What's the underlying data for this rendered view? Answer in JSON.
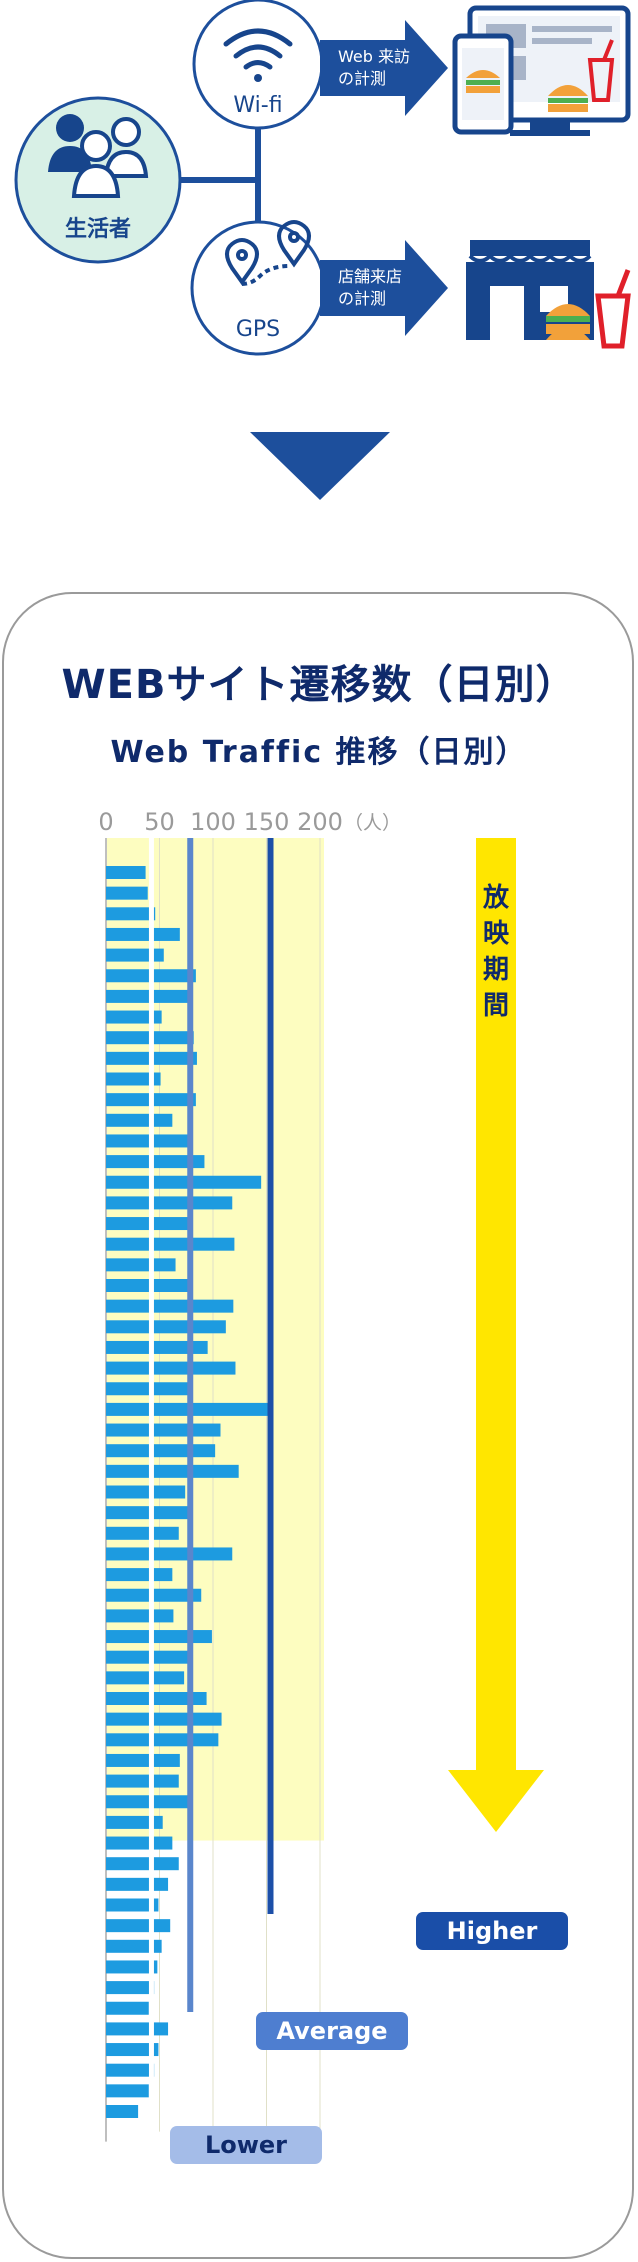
{
  "flow": {
    "person_label": "生活者",
    "wifi_label": "Wi-fi",
    "gps_label": "GPS",
    "web_arrow_line1": "Web 来訪",
    "web_arrow_line2": "の計測",
    "store_arrow_line1": "店舗来店",
    "store_arrow_line2": "の計測"
  },
  "chart_data": {
    "type": "bar",
    "orientation": "horizontal",
    "title": "WEBサイト遷移数（日別）",
    "subtitle": "Web Traffic 推移（日別）",
    "xlim": [
      0,
      200
    ],
    "x_ticks": [
      "0",
      "50",
      "100",
      "150",
      "200"
    ],
    "x_unit": "（人）",
    "values": [
      37,
      39,
      46,
      69,
      54,
      84,
      79,
      52,
      82,
      85,
      51,
      84,
      62,
      77,
      92,
      145,
      118,
      81,
      120,
      65,
      81,
      119,
      112,
      95,
      121,
      77,
      152,
      107,
      102,
      124,
      74,
      77,
      68,
      118,
      62,
      89,
      63,
      99,
      81,
      73,
      94,
      108,
      105,
      69,
      68,
      79,
      53,
      62,
      68,
      58,
      49,
      60,
      52,
      48,
      45,
      40,
      58,
      49,
      45,
      40,
      30
    ],
    "lower_values": [
      37,
      39,
      46,
      69
    ],
    "reference_lines": [
      {
        "name": "Lower",
        "value": 35,
        "color": "#ffffff"
      },
      {
        "name": "Average",
        "value": 75,
        "color": "#5a86cc"
      },
      {
        "name": "Higher",
        "value": 150,
        "color": "#1c4fa8"
      }
    ],
    "screening_period": {
      "label": "放映期間",
      "start_index": 0,
      "end_index": 46
    },
    "colors": {
      "bar": "#1d9be0",
      "band": "#fdfdc0",
      "arrow": "#ffe600",
      "lower_badge": "#a4bce8",
      "average_badge": "#4e7ed0",
      "higher_badge": "#1a4ea8"
    }
  }
}
